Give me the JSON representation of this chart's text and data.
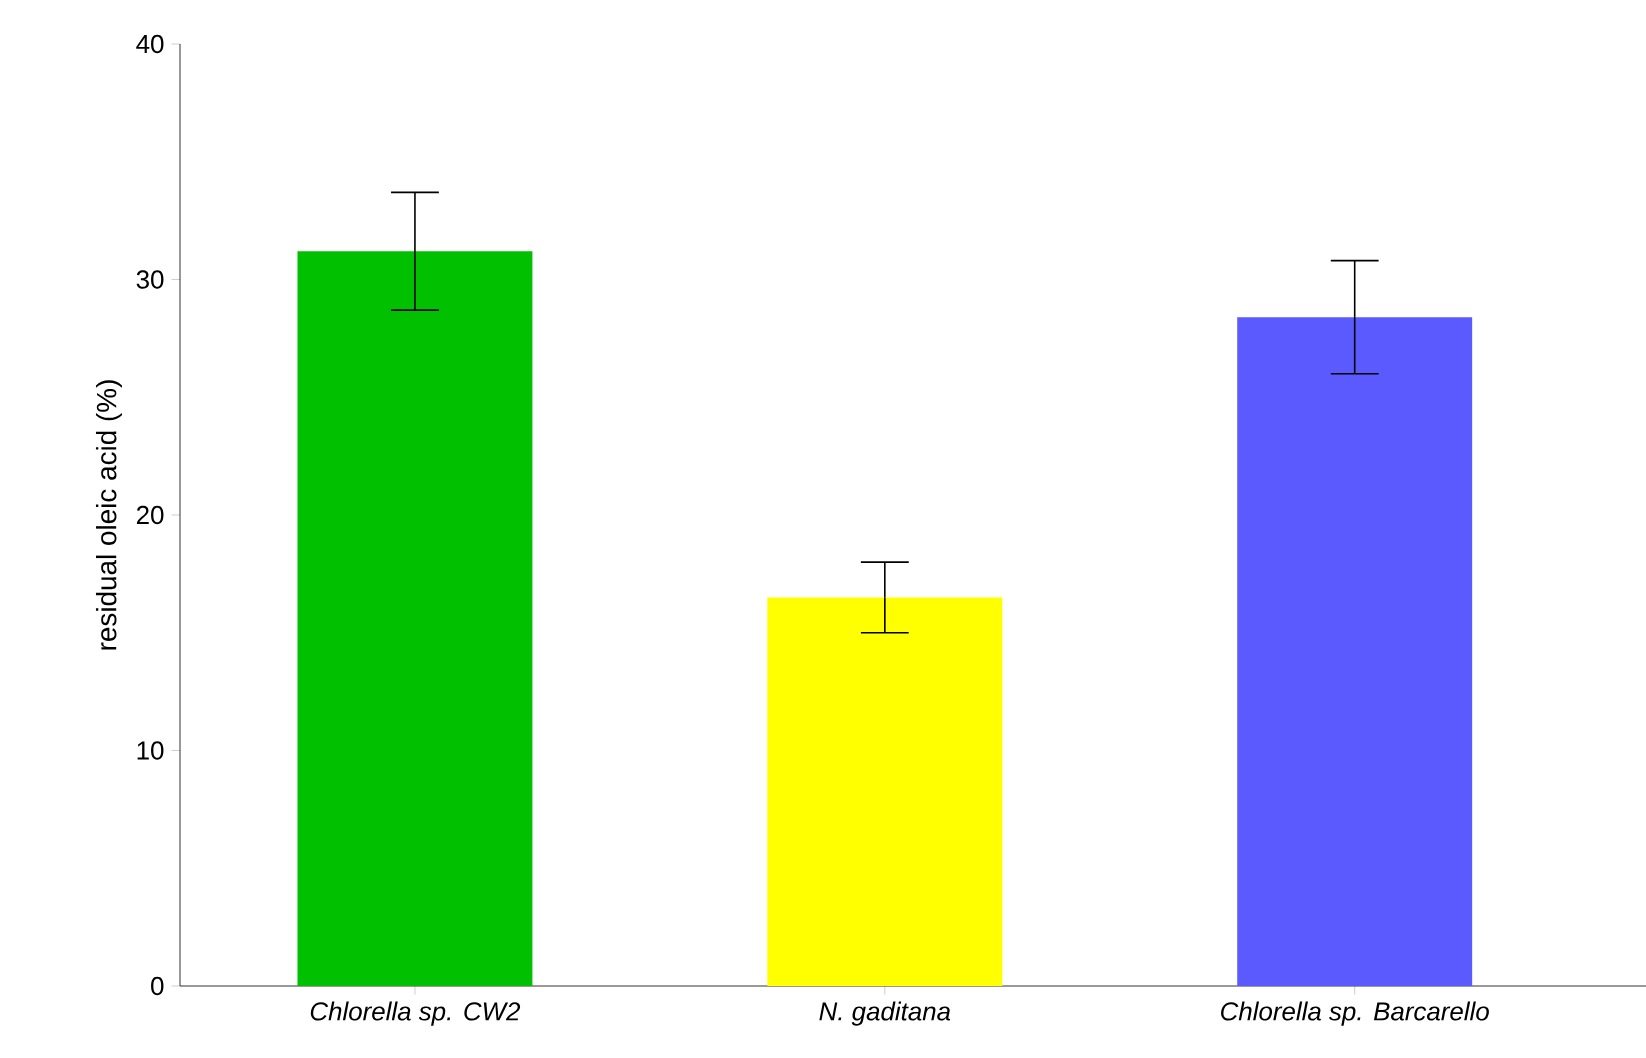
{
  "chart_data": {
    "type": "bar",
    "ylabel": "residual oleic acid (%)",
    "categories": [
      "Chlorella sp. CW2",
      "N. gaditana",
      "Chlorella sp. Barcarello"
    ],
    "values": [
      31.2,
      16.5,
      28.4
    ],
    "errors": [
      2.5,
      1.5,
      2.4
    ],
    "colors": [
      "#00c000",
      "#ffff00",
      "#5a5aff"
    ],
    "ylim": [
      0,
      40
    ],
    "yticks": [
      0,
      10,
      20,
      30,
      40
    ]
  }
}
